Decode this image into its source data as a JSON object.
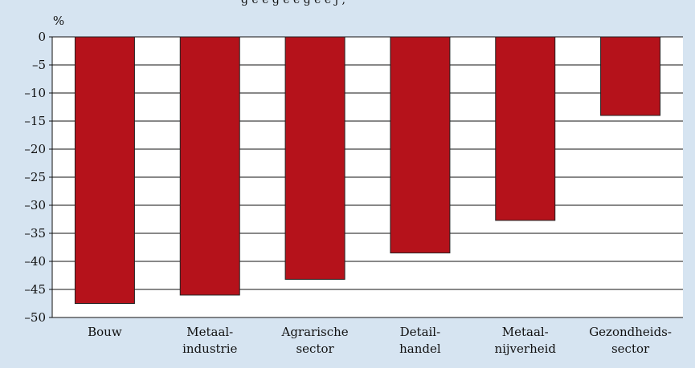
{
  "header_text_cropped": "g e e g e e g e e j ,",
  "chart_data": {
    "type": "bar",
    "title": "",
    "subtitle": "",
    "xlabel": "",
    "ylabel": "%",
    "ylim": [
      -50,
      0
    ],
    "yticks": [
      0,
      -5,
      -10,
      -15,
      -20,
      -25,
      -30,
      -35,
      -40,
      -45,
      -50
    ],
    "ytick_labels": [
      "0",
      "–5",
      "–10",
      "–15",
      "–20",
      "–25",
      "–30",
      "–35",
      "–40",
      "–45",
      "–50"
    ],
    "grid": true,
    "legend": "none",
    "categories": [
      [
        "Bouw"
      ],
      [
        "Metaal-",
        "industrie"
      ],
      [
        "Agrarische",
        "sector"
      ],
      [
        "Detail-",
        "handel"
      ],
      [
        "Metaal-",
        "nijverheid"
      ],
      [
        "Gezondheids-",
        "sector"
      ]
    ],
    "values": [
      -47.5,
      -46.0,
      -43.2,
      -38.5,
      -32.7,
      -14.0
    ],
    "bar_color": "#b5121b",
    "background_color": "#d6e4f1",
    "plot_background_color": "#ffffff"
  }
}
